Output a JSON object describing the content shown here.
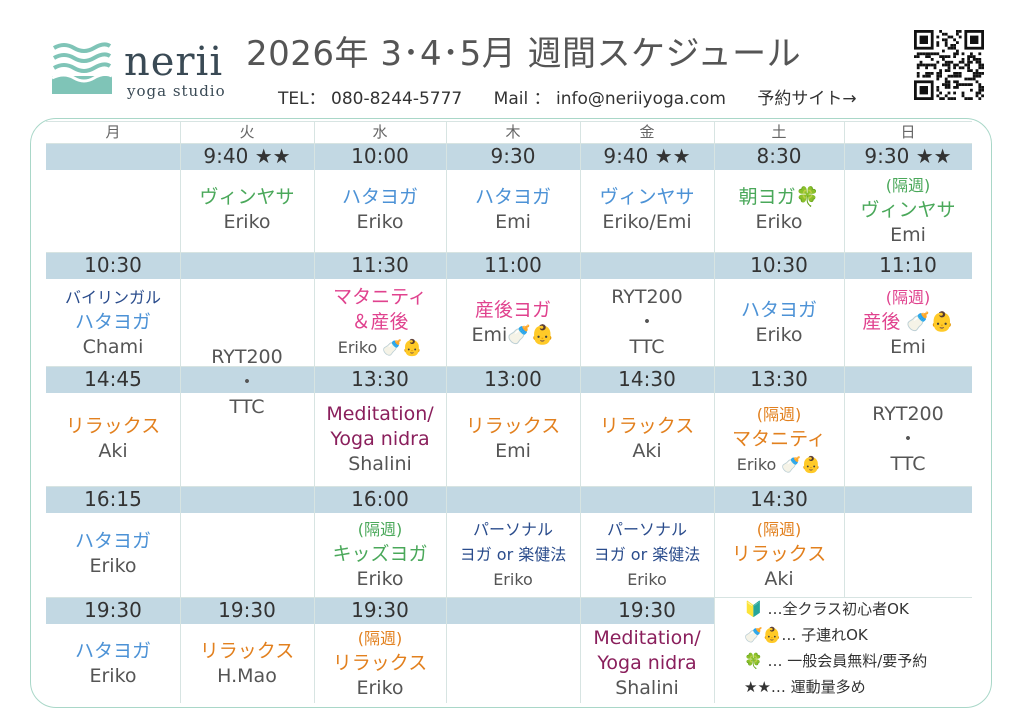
{
  "header": {
    "brand_name": "nerii",
    "brand_sub": "yoga studio",
    "title": "2026年 3･4･5月 週間スケジュール",
    "tel": "TEL： 080-8244-5777",
    "mail": "Mail ： info@neriiyoga.com",
    "reserve": "予約サイト→"
  },
  "days": [
    "月",
    "火",
    "水",
    "木",
    "金",
    "土",
    "日"
  ],
  "row1": {
    "times": [
      "",
      "9:40 ★★",
      "10:00",
      "9:30",
      "9:40 ★★",
      "8:30",
      "9:30 ★★"
    ],
    "cells": [
      [],
      [
        {
          "t": "ヴィンヤサ",
          "c": "t-green"
        },
        {
          "t": "Eriko",
          "c": "t-gray"
        }
      ],
      [
        {
          "t": "ハタヨガ",
          "c": "t-blue"
        },
        {
          "t": "Eriko",
          "c": "t-gray"
        }
      ],
      [
        {
          "t": "ハタヨガ",
          "c": "t-blue"
        },
        {
          "t": "Emi",
          "c": "t-gray"
        }
      ],
      [
        {
          "t": "ヴィンヤサ",
          "c": "t-blue"
        },
        {
          "t": "Eriko/Emi",
          "c": "t-gray"
        }
      ],
      [
        {
          "t": "朝ヨガ🍀",
          "c": "t-green"
        },
        {
          "t": "Eriko",
          "c": "t-gray"
        }
      ],
      [
        {
          "t": "(隔週)",
          "c": "t-green small"
        },
        {
          "t": "ヴィンヤサ",
          "c": "t-green"
        },
        {
          "t": "Emi",
          "c": "t-gray"
        }
      ]
    ]
  },
  "row2": {
    "times": [
      "10:30",
      "",
      "11:30",
      "11:00",
      "",
      "10:30",
      "11:10"
    ],
    "cells": [
      [
        {
          "t": "バイリンガル",
          "c": "t-navy small"
        },
        {
          "t": "ハタヨガ",
          "c": "t-blue"
        },
        {
          "t": "Chami",
          "c": "t-gray"
        }
      ],
      [],
      [
        {
          "t": "マタニティ",
          "c": "t-pink"
        },
        {
          "t": "＆産後",
          "c": "t-pink"
        },
        {
          "t": "Eriko 🍼👶",
          "c": "t-gray small"
        }
      ],
      [
        {
          "t": "産後ヨガ",
          "c": "t-pink"
        },
        {
          "t": "Emi🍼👶",
          "c": "t-gray"
        }
      ],
      [
        {
          "t": "RYT200",
          "c": "t-gray"
        },
        {
          "t": "・",
          "c": "t-gray"
        },
        {
          "t": "TTC",
          "c": "t-gray"
        }
      ],
      [
        {
          "t": "ハタヨガ",
          "c": "t-blue"
        },
        {
          "t": "Eriko",
          "c": "t-gray"
        }
      ],
      [
        {
          "t": "(隔週)",
          "c": "t-pink small"
        },
        {
          "t": "産後 🍼👶",
          "c": "t-pink"
        },
        {
          "t": "Emi",
          "c": "t-gray"
        }
      ]
    ],
    "tue_span": [
      {
        "t": "RYT200",
        "c": "t-gray"
      },
      {
        "t": "・",
        "c": "t-gray"
      },
      {
        "t": "TTC",
        "c": "t-gray"
      }
    ]
  },
  "row3": {
    "times": [
      "14:45",
      "",
      "13:30",
      "13:00",
      "14:30",
      "13:30",
      ""
    ],
    "cells": [
      [
        {
          "t": "リラックス",
          "c": "t-orange"
        },
        {
          "t": "Aki",
          "c": "t-gray"
        }
      ],
      [],
      [
        {
          "t": "Meditation/",
          "c": "t-purple"
        },
        {
          "t": "Yoga nidra",
          "c": "t-purple"
        },
        {
          "t": "Shalini",
          "c": "t-gray"
        }
      ],
      [
        {
          "t": "リラックス",
          "c": "t-orange"
        },
        {
          "t": "Emi",
          "c": "t-gray"
        }
      ],
      [
        {
          "t": "リラックス",
          "c": "t-orange"
        },
        {
          "t": "Aki",
          "c": "t-gray"
        }
      ],
      [
        {
          "t": "(隔週)",
          "c": "t-orange small"
        },
        {
          "t": "マタニティ",
          "c": "t-orange"
        },
        {
          "t": "Eriko 🍼👶",
          "c": "t-gray small"
        }
      ],
      [
        {
          "t": "RYT200",
          "c": "t-gray"
        },
        {
          "t": "・",
          "c": "t-gray"
        },
        {
          "t": "TTC",
          "c": "t-gray"
        }
      ]
    ]
  },
  "row4": {
    "times": [
      "16:15",
      "",
      "16:00",
      "",
      "",
      "14:30",
      ""
    ],
    "cells": [
      [
        {
          "t": "ハタヨガ",
          "c": "t-blue"
        },
        {
          "t": "Eriko",
          "c": "t-gray"
        }
      ],
      [],
      [
        {
          "t": "(隔週)",
          "c": "t-green small"
        },
        {
          "t": "キッズヨガ",
          "c": "t-green"
        },
        {
          "t": "Eriko",
          "c": "t-gray"
        }
      ],
      [
        {
          "t": "パーソナル",
          "c": "t-navy small"
        },
        {
          "t": "ヨガ or 楽健法",
          "c": "t-navy small"
        },
        {
          "t": "Eriko",
          "c": "t-gray small"
        }
      ],
      [
        {
          "t": "パーソナル",
          "c": "t-navy small"
        },
        {
          "t": "ヨガ or 楽健法",
          "c": "t-navy small"
        },
        {
          "t": "Eriko",
          "c": "t-gray small"
        }
      ],
      [
        {
          "t": "(隔週)",
          "c": "t-orange small"
        },
        {
          "t": "リラックス",
          "c": "t-orange"
        },
        {
          "t": "Aki",
          "c": "t-gray"
        }
      ],
      []
    ]
  },
  "row5": {
    "times": [
      "19:30",
      "19:30",
      "19:30",
      "",
      "19:30"
    ],
    "cells": [
      [
        {
          "t": "ハタヨガ",
          "c": "t-blue"
        },
        {
          "t": "Eriko",
          "c": "t-gray"
        }
      ],
      [
        {
          "t": "リラックス",
          "c": "t-orange"
        },
        {
          "t": "H.Mao",
          "c": "t-gray"
        }
      ],
      [
        {
          "t": "(隔週)",
          "c": "t-orange small"
        },
        {
          "t": "リラックス",
          "c": "t-orange"
        },
        {
          "t": "Eriko",
          "c": "t-gray"
        }
      ],
      [],
      [
        {
          "t": "Meditation/",
          "c": "t-purple"
        },
        {
          "t": "Yoga nidra",
          "c": "t-purple"
        },
        {
          "t": "Shalini",
          "c": "t-gray"
        }
      ]
    ]
  },
  "legend": [
    "🔰 …全クラス初心者OK",
    "🍼👶… 子連れOK",
    "🍀 … 一般会員無料/要予約",
    "★★… 運動量多め"
  ],
  "colors": {
    "band": "#c2d8e3",
    "frame": "#a9d7c8",
    "green": "#4aa85a",
    "blue": "#4c92d6",
    "pink": "#e0428e",
    "orange": "#e2801e",
    "purple": "#8a1f5c"
  }
}
